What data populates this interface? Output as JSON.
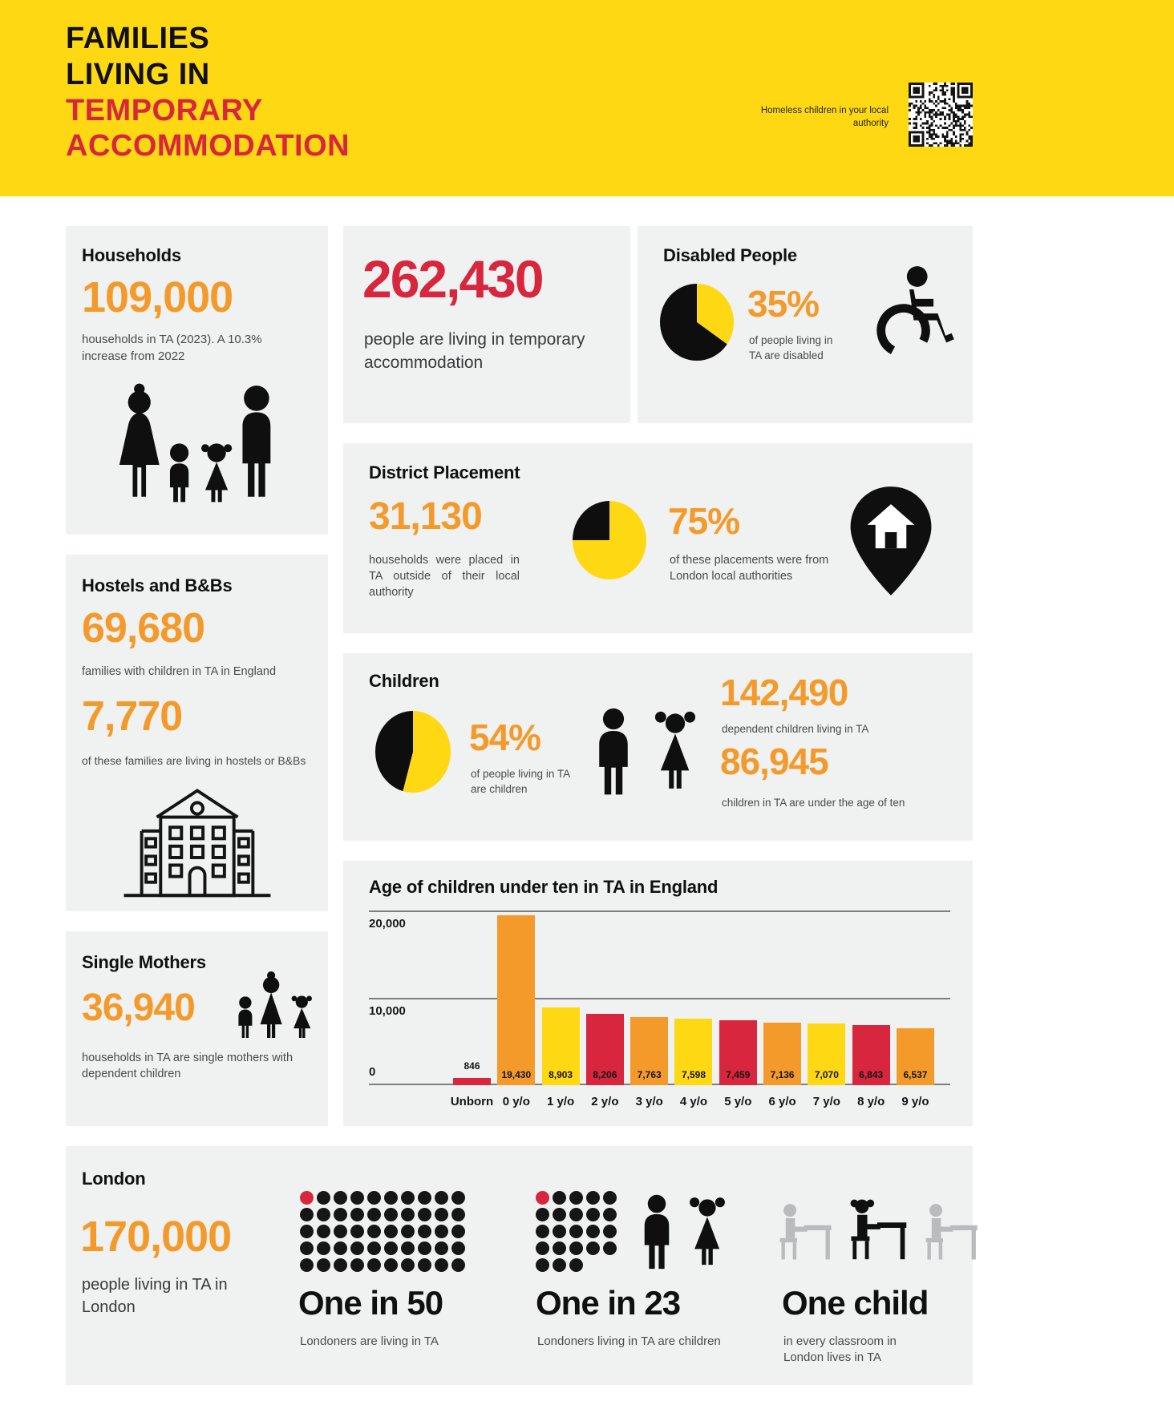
{
  "colors": {
    "yellow": "#FFD814",
    "orange": "#F49A2B",
    "red": "#D7263D",
    "black": "#0E0E0E",
    "card_bg": "#F0F1F1",
    "grid": "#7C7E80"
  },
  "banner": {
    "title_line1": "FAMILIES",
    "title_line2": "LIVING IN",
    "title_line3": "TEMPORARY",
    "title_line4": "ACCOMMODATION",
    "qr_caption": "Homeless children in your local authority"
  },
  "cards": {
    "households": {
      "title": "Households",
      "value": "109,000",
      "caption": "households in TA (2023). A 10.3% increase from 2022"
    },
    "people_total": {
      "value": "262,430",
      "caption": "people are living in temporary accommodation"
    },
    "disabled": {
      "title": "Disabled People",
      "percent": "35%",
      "pie_percent": 35,
      "caption": "of people living in TA are disabled"
    },
    "district": {
      "title": "District Placement",
      "value": "31,130",
      "value_caption": "households were placed in TA outside of their local authority",
      "percent": "75%",
      "pie_percent": 75,
      "percent_caption": "of these placements were from London local authorities"
    },
    "hostels": {
      "title": "Hostels and B&Bs",
      "value1": "69,680",
      "caption1": "families with children in TA in England",
      "value2": "7,770",
      "caption2": "of these families are living in hostels or B&Bs"
    },
    "children": {
      "title": "Children",
      "percent": "54%",
      "pie_percent": 54,
      "percent_caption": "of people living in TA are children",
      "value1": "142,490",
      "caption1": "dependent children living in TA",
      "value2": "86,945",
      "caption2": "children in TA are under the age of ten"
    },
    "single_mothers": {
      "title": "Single Mothers",
      "value": "36,940",
      "caption": "households in TA are single mothers with dependent children"
    },
    "london": {
      "title": "London",
      "value": "170,000",
      "caption": "people living in TA in London",
      "stats": [
        {
          "heading": "One in 50",
          "caption": "Londoners are living in TA",
          "dots": {
            "total": 50,
            "cols": 10
          }
        },
        {
          "heading": "One in 23",
          "caption": "Londoners living in TA are children",
          "dots": {
            "total": 23,
            "cols": 5
          }
        },
        {
          "heading": "One child",
          "caption": "in every classroom in London lives in TA"
        }
      ]
    }
  },
  "chart_data": {
    "type": "bar",
    "title": "Age of children under ten in TA in England",
    "categories": [
      "Unborn",
      "0 y/o",
      "1 y/o",
      "2 y/o",
      "3 y/o",
      "4 y/o",
      "5 y/o",
      "6 y/o",
      "7 y/o",
      "8 y/o",
      "9 y/o"
    ],
    "values": [
      846,
      19430,
      8903,
      8206,
      7763,
      7598,
      7459,
      7136,
      7070,
      6843,
      6537
    ],
    "labels": [
      "846",
      "19,430",
      "8,903",
      "8,206",
      "7,763",
      "7,598",
      "7,459",
      "7,136",
      "7,070",
      "6,843",
      "6,537"
    ],
    "bar_colors": [
      "#D7263D",
      "#F49A2B",
      "#FFD814",
      "#D7263D",
      "#F49A2B",
      "#FFD814",
      "#D7263D",
      "#F49A2B",
      "#FFD814",
      "#D7263D",
      "#F49A2B"
    ],
    "xlabel": "",
    "ylabel": "",
    "ylim": [
      0,
      20000
    ],
    "yticks": [
      "20,000",
      "10,000",
      "0"
    ],
    "grid": true,
    "legend": false
  }
}
